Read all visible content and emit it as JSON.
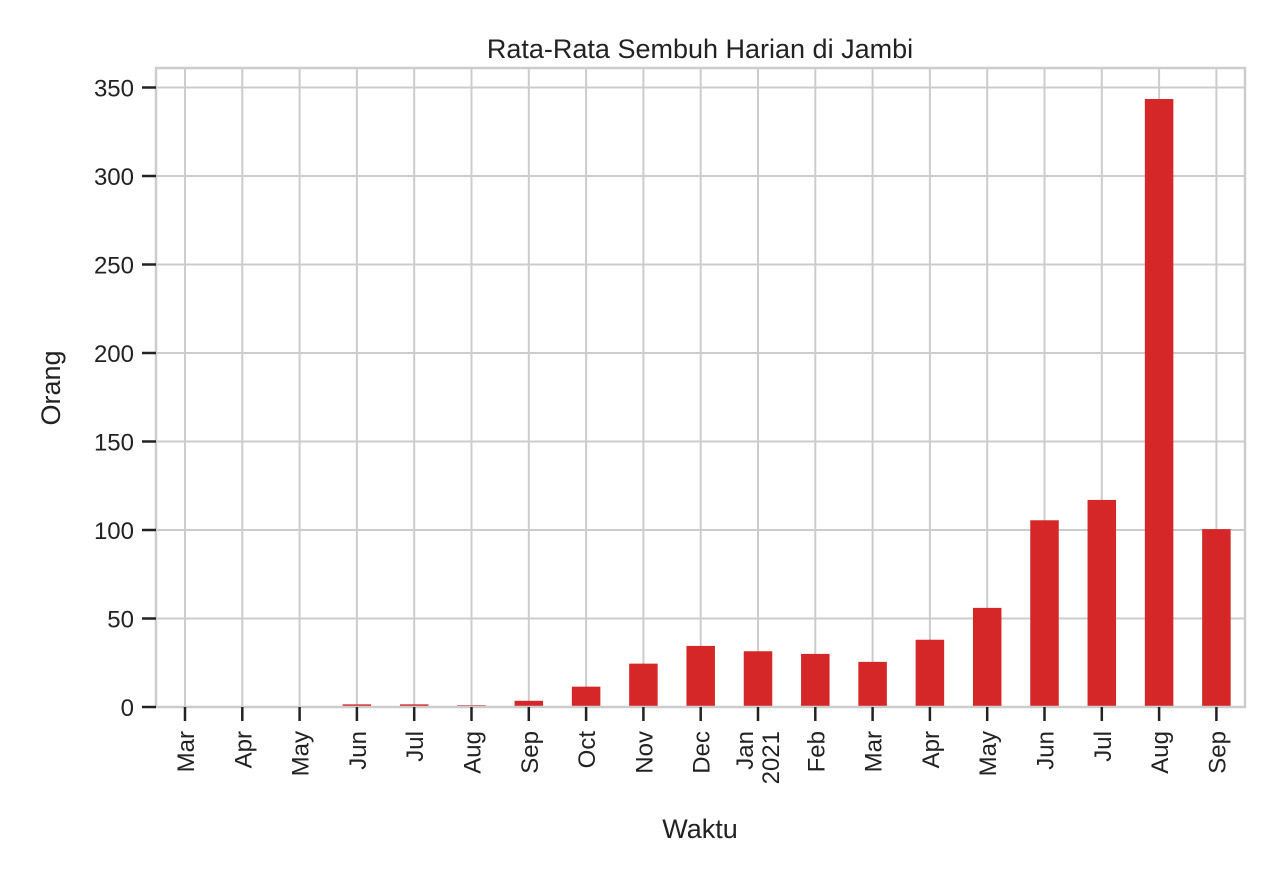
{
  "chart_data": {
    "type": "bar",
    "title": "Rata-Rata Sembuh Harian di Jambi",
    "xlabel": "Waktu",
    "ylabel": "Orang",
    "ylim": [
      0,
      360
    ],
    "yticks": [
      0,
      50,
      100,
      150,
      200,
      250,
      300,
      350
    ],
    "grid": true,
    "bar_color": "#d62728",
    "categories": [
      {
        "label": "Mar",
        "sublabel": ""
      },
      {
        "label": "Apr",
        "sublabel": ""
      },
      {
        "label": "May",
        "sublabel": ""
      },
      {
        "label": "Jun",
        "sublabel": ""
      },
      {
        "label": "Jul",
        "sublabel": ""
      },
      {
        "label": "Aug",
        "sublabel": ""
      },
      {
        "label": "Sep",
        "sublabel": ""
      },
      {
        "label": "Oct",
        "sublabel": ""
      },
      {
        "label": "Nov",
        "sublabel": ""
      },
      {
        "label": "Dec",
        "sublabel": ""
      },
      {
        "label": "Jan",
        "sublabel": "2021"
      },
      {
        "label": "Feb",
        "sublabel": ""
      },
      {
        "label": "Mar",
        "sublabel": ""
      },
      {
        "label": "Apr",
        "sublabel": ""
      },
      {
        "label": "May",
        "sublabel": ""
      },
      {
        "label": "Jun",
        "sublabel": ""
      },
      {
        "label": "Jul",
        "sublabel": ""
      },
      {
        "label": "Aug",
        "sublabel": ""
      },
      {
        "label": "Sep",
        "sublabel": ""
      }
    ],
    "values": [
      0,
      0,
      0,
      1.5,
      1.5,
      1,
      3.5,
      11.5,
      24.5,
      34.5,
      31.5,
      30,
      25.5,
      38,
      56,
      105.5,
      117,
      343.5,
      100.5
    ]
  }
}
